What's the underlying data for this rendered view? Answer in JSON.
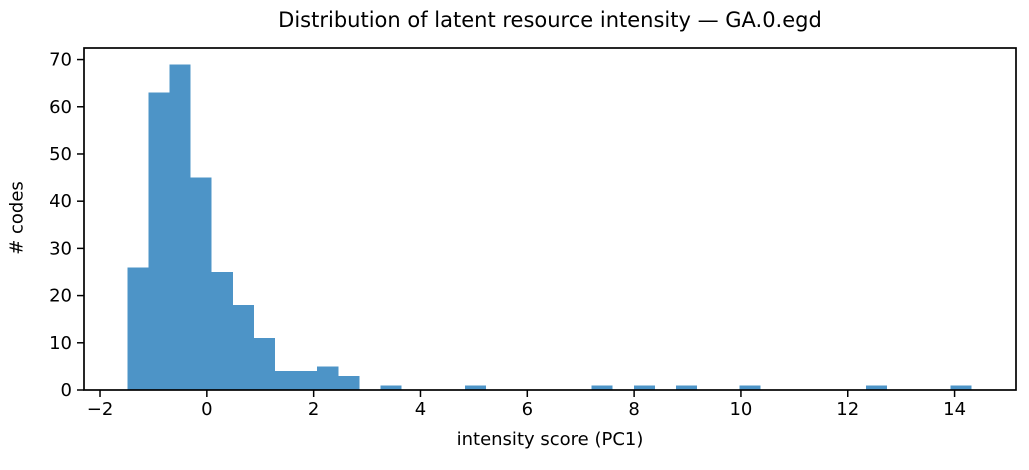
{
  "chart_data": {
    "type": "bar",
    "subtype": "histogram",
    "title": "Distribution of latent resource intensity — GA.0.egd",
    "xlabel": "intensity score (PC1)",
    "ylabel": "# codes",
    "bar_color": "#4d94c7",
    "axis_color": "#000000",
    "text_color": "#000000",
    "background_color": "#ffffff",
    "bin_start": -1.49,
    "bin_width": 0.3952,
    "counts": [
      26,
      63,
      69,
      45,
      25,
      18,
      11,
      4,
      4,
      5,
      3,
      0,
      1,
      0,
      0,
      0,
      1,
      0,
      0,
      0,
      0,
      0,
      1,
      0,
      1,
      0,
      1,
      0,
      0,
      1,
      0,
      0,
      0,
      0,
      0,
      1,
      0,
      0,
      0,
      1
    ],
    "xlim": [
      -2.3,
      15.15
    ],
    "ylim": [
      0,
      72.45
    ],
    "x_tick_values": [
      -2,
      0,
      2,
      4,
      6,
      8,
      10,
      12,
      14
    ],
    "x_tick_labels": [
      "−2",
      "0",
      "2",
      "4",
      "6",
      "8",
      "10",
      "12",
      "14"
    ],
    "y_tick_values": [
      0,
      10,
      20,
      30,
      40,
      50,
      60,
      70
    ],
    "y_tick_labels": [
      "0",
      "10",
      "20",
      "30",
      "40",
      "50",
      "60",
      "70"
    ],
    "grid": false,
    "legend": "none"
  }
}
